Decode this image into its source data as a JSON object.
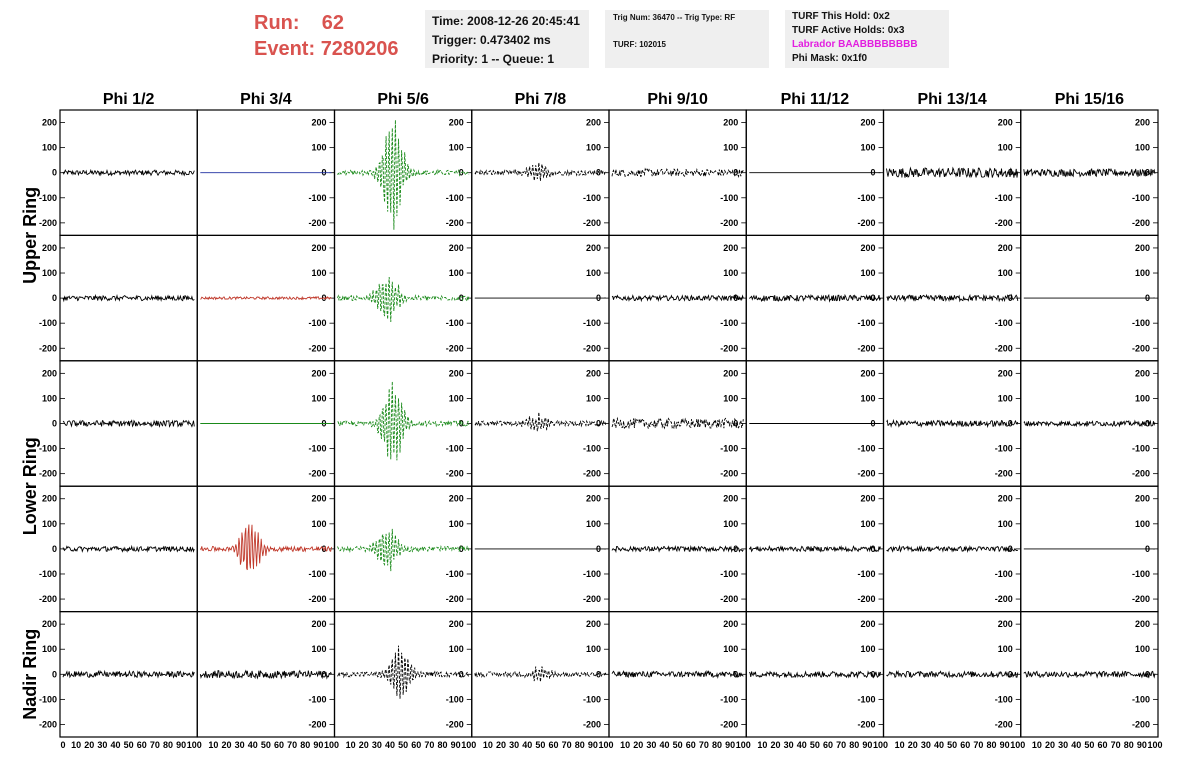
{
  "header": {
    "run_label": "Run:",
    "run_value": "62",
    "event_label": "Event:",
    "event_value": "7280206",
    "time": "Time: 2008-12-26 20:45:41",
    "trigger": "Trigger: 0.473402 ms",
    "priority": "Priority: 1 -- Queue: 1",
    "trig_num": "Trig Num: 36470 -- Trig Type: RF",
    "turf": "TURF: 102015",
    "turf_this_hold": "TURF This Hold: 0x2",
    "turf_active_holds": "TURF Active Holds: 0x3",
    "labrador": "Labrador BAABBBBBBBB",
    "phi_mask": "Phi Mask: 0x1f0"
  },
  "colors": {
    "header_red": "#d9534f",
    "labrador_magenta": "#e21ee0",
    "trace_black": "#000000",
    "trace_green": "#1a8a1a",
    "trace_red": "#c0392b",
    "trace_blue": "#1f2fa0",
    "box_bg": "#efefef"
  },
  "chart_data": {
    "type": "line",
    "columns": [
      "Phi 1/2",
      "Phi 3/4",
      "Phi 5/6",
      "Phi 7/8",
      "Phi 9/10",
      "Phi 11/12",
      "Phi 13/14",
      "Phi 15/16"
    ],
    "rows": [
      "Upper Ring",
      "",
      "Lower Ring",
      "",
      "Nadir Ring"
    ],
    "xlim": [
      0,
      100
    ],
    "ylim": [
      -250,
      250
    ],
    "y_ticks": [
      200,
      100,
      0,
      -100,
      -200
    ],
    "x_tick_labels": [
      "0",
      "10",
      "20",
      "30",
      "40",
      "50",
      "60",
      "70",
      "80",
      "90",
      "100"
    ],
    "panels": [
      [
        {
          "amp": 10,
          "kind": "noise",
          "color": "black"
        },
        {
          "amp": 0,
          "kind": "flat",
          "color": "blue"
        },
        {
          "amp": 240,
          "kind": "pulse",
          "center": 42,
          "color": "green",
          "dashed": true
        },
        {
          "amp": 40,
          "kind": "pulse",
          "center": 48,
          "color": "black",
          "dashed": true
        },
        {
          "amp": 15,
          "kind": "noise",
          "color": "black",
          "dashed": true
        },
        {
          "amp": 0,
          "kind": "flat",
          "color": "black"
        },
        {
          "amp": 20,
          "kind": "noise",
          "color": "black"
        },
        {
          "amp": 15,
          "kind": "noise",
          "color": "black"
        }
      ],
      [
        {
          "amp": 10,
          "kind": "noise",
          "color": "black"
        },
        {
          "amp": 5,
          "kind": "noise",
          "color": "red"
        },
        {
          "amp": 120,
          "kind": "pulse",
          "center": 38,
          "color": "green",
          "dashed": true
        },
        {
          "amp": 0,
          "kind": "flat",
          "color": "black"
        },
        {
          "amp": 10,
          "kind": "noise",
          "color": "black"
        },
        {
          "amp": 12,
          "kind": "noise",
          "color": "black"
        },
        {
          "amp": 12,
          "kind": "noise",
          "color": "black"
        },
        {
          "amp": 0,
          "kind": "flat",
          "color": "black"
        }
      ],
      [
        {
          "amp": 12,
          "kind": "noise",
          "color": "black"
        },
        {
          "amp": 0,
          "kind": "flat",
          "color": "green"
        },
        {
          "amp": 200,
          "kind": "pulse",
          "center": 42,
          "color": "green",
          "dashed": true
        },
        {
          "amp": 40,
          "kind": "pulse",
          "center": 48,
          "color": "black",
          "dashed": true
        },
        {
          "amp": 20,
          "kind": "noise",
          "color": "black",
          "dashed": true
        },
        {
          "amp": 0,
          "kind": "flat",
          "color": "black"
        },
        {
          "amp": 12,
          "kind": "noise",
          "color": "black"
        },
        {
          "amp": 10,
          "kind": "noise",
          "color": "black"
        }
      ],
      [
        {
          "amp": 10,
          "kind": "noise",
          "color": "black"
        },
        {
          "amp": 130,
          "kind": "pulse",
          "center": 38,
          "color": "red"
        },
        {
          "amp": 100,
          "kind": "pulse",
          "center": 38,
          "color": "green",
          "dashed": true
        },
        {
          "amp": 0,
          "kind": "flat",
          "color": "black"
        },
        {
          "amp": 10,
          "kind": "noise",
          "color": "black"
        },
        {
          "amp": 10,
          "kind": "noise",
          "color": "black"
        },
        {
          "amp": 10,
          "kind": "noise",
          "color": "black"
        },
        {
          "amp": 0,
          "kind": "flat",
          "color": "black"
        }
      ],
      [
        {
          "amp": 12,
          "kind": "noise",
          "color": "black"
        },
        {
          "amp": 15,
          "kind": "noise",
          "color": "black"
        },
        {
          "amp": 130,
          "kind": "pulse",
          "center": 48,
          "color": "black",
          "dashed": true
        },
        {
          "amp": 30,
          "kind": "pulse",
          "center": 50,
          "color": "black",
          "dashed": true
        },
        {
          "amp": 12,
          "kind": "noise",
          "color": "black"
        },
        {
          "amp": 12,
          "kind": "noise",
          "color": "black"
        },
        {
          "amp": 12,
          "kind": "noise",
          "color": "black"
        },
        {
          "amp": 12,
          "kind": "noise",
          "color": "black"
        }
      ]
    ]
  }
}
